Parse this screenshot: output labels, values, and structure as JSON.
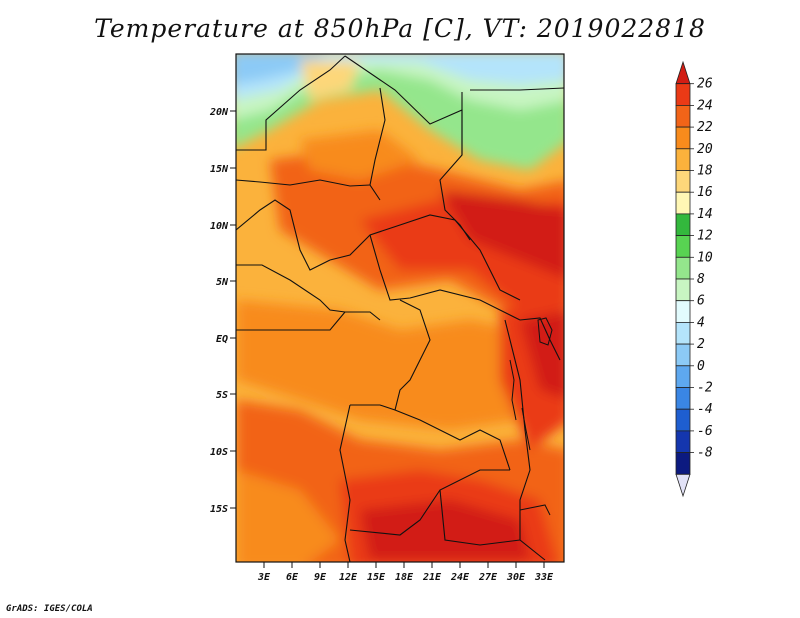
{
  "title": "Temperature at 850hPa [C], VT: 2019022818",
  "credit": "GrADS: IGES/COLA",
  "map": {
    "lat_labels": [
      "20N",
      "15N",
      "10N",
      "5N",
      "EQ",
      "5S",
      "10S",
      "15S"
    ],
    "lon_labels": [
      "3E",
      "6E",
      "9E",
      "12E",
      "15E",
      "18E",
      "21E",
      "24E",
      "27E",
      "30E",
      "33E"
    ]
  },
  "colorbar": {
    "labels": [
      "26",
      "24",
      "22",
      "20",
      "18",
      "16",
      "14",
      "12",
      "10",
      "8",
      "6",
      "4",
      "2",
      "0",
      "-2",
      "-4",
      "-6",
      "-8"
    ],
    "colors": [
      "#d21d14",
      "#ea3a16",
      "#f26418",
      "#f88b1c",
      "#fbb23c",
      "#fdd77a",
      "#fff7b5",
      "#33b83d",
      "#58d352",
      "#94e68c",
      "#c8f5c2",
      "#e2fbfd",
      "#b4e4fb",
      "#8ccaf6",
      "#5ea8ef",
      "#3a86e4",
      "#1e5ed0",
      "#1436ae",
      "#0c1a80",
      "#e2e2f7"
    ]
  }
}
